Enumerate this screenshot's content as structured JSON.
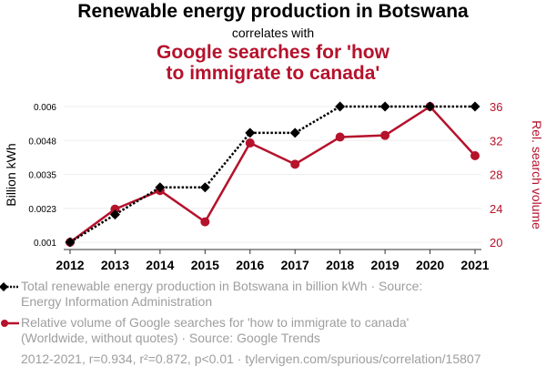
{
  "title": {
    "main": "Renewable energy production in Botswana",
    "connector": "correlates with",
    "secondary_line1": "Google searches for 'how",
    "secondary_line2": "to immigrate to canada'"
  },
  "colors": {
    "series1": "#000000",
    "series2": "#b5122c",
    "legend_text": "#9e9e9e",
    "grid": "#eeeeee"
  },
  "chart_data": {
    "type": "line",
    "title": "Renewable energy production in Botswana correlates with Google searches for 'how to immigrate to canada'",
    "x": [
      2012,
      2013,
      2014,
      2015,
      2016,
      2017,
      2018,
      2019,
      2020,
      2021
    ],
    "x_tick_labels": [
      "2012",
      "2013",
      "2014",
      "2015",
      "2016",
      "2017",
      "2018",
      "2019",
      "2020",
      "2021"
    ],
    "xlabel": "",
    "ylabel_left": "Billion kWh",
    "ylabel_right": "Rel. search volume",
    "y_left_ticks": [
      "0.001",
      "0.0023",
      "0.0035",
      "0.0048",
      "0.006"
    ],
    "y_left_range": [
      0.001,
      0.006
    ],
    "y_right_ticks": [
      "20",
      "24",
      "28",
      "32",
      "36"
    ],
    "y_right_range": [
      20,
      36
    ],
    "grid": true,
    "legend_position": "bottom-left",
    "series": [
      {
        "name": "Total renewable energy production in Botswana in billion kWh",
        "axis": "left",
        "style": "dotted",
        "marker": "diamond",
        "values": [
          0.001,
          0.00202,
          0.00302,
          0.00302,
          0.00503,
          0.00503,
          0.006,
          0.006,
          0.006,
          0.006
        ]
      },
      {
        "name": "Relative volume of Google searches for 'how to immigrate to canada'",
        "axis": "right",
        "style": "solid",
        "marker": "circle",
        "values": [
          20.0,
          23.9,
          26.1,
          22.4,
          31.7,
          29.2,
          32.4,
          32.6,
          36.0,
          30.2
        ]
      }
    ]
  },
  "legend": {
    "item1_line1": "Total renewable energy production in Botswana in billion kWh · Source:",
    "item1_line2": "Energy Information Administration",
    "item2_line1": "Relative volume of Google searches for 'how to immigrate to canada'",
    "item2_line2": "(Worldwide, without quotes) · Source: Google Trends"
  },
  "footer": "2012-2021, r=0.934, r²=0.872, p<0.01 · tylervigen.com/spurious/correlation/15807"
}
